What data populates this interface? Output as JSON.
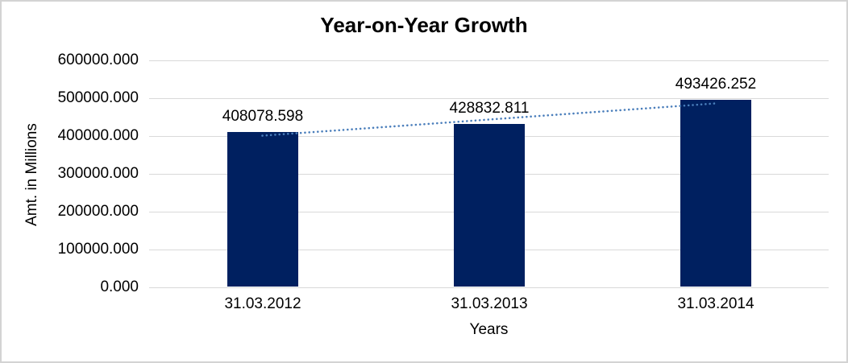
{
  "chart_data": {
    "type": "bar",
    "title": "Year-on-Year Growth",
    "xlabel": "Years",
    "ylabel": "Amt. in Millions",
    "categories": [
      "31.03.2012",
      "31.03.2013",
      "31.03.2014"
    ],
    "series": [
      {
        "name": "Amt. in Millions",
        "values": [
          408078.598,
          428832.811,
          493426.252
        ],
        "data_labels": [
          "408078.598",
          "428832.811",
          "493426.252"
        ]
      }
    ],
    "ylim": [
      0,
      600000
    ],
    "ytick_step": 100000,
    "ytick_labels": [
      "600000.000",
      "500000.000",
      "400000.000",
      "300000.000",
      "200000.000",
      "100000.000",
      "0.000"
    ],
    "grid": true,
    "legend": "none",
    "trendline": {
      "type": "linear",
      "style": "dotted",
      "applies_to": "Amt. in Millions"
    },
    "colors": {
      "bar_fill": "#002060",
      "trendline": "#4a7ebb",
      "gridline": "#d9d9d9",
      "text": "#000000",
      "frame_border": "#d3d3d3",
      "background": "#ffffff"
    }
  }
}
